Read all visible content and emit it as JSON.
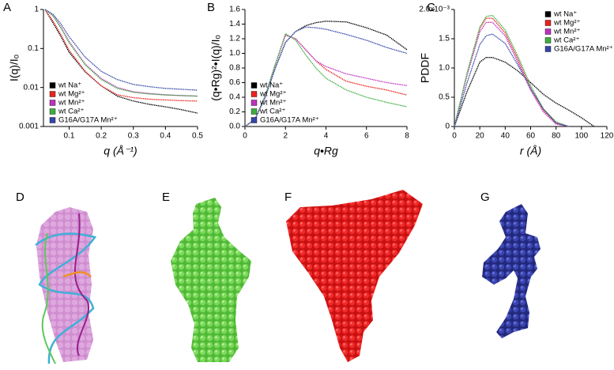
{
  "chart_data": [
    {
      "type": "line",
      "panel": "A",
      "xlabel": "q (Å⁻¹)",
      "ylabel": "I(q)/Iₒ",
      "yscale": "log",
      "legend": "lower left",
      "xlim": [
        0.02,
        0.5
      ],
      "xticks": [
        0.1,
        0.2,
        0.3,
        0.4,
        0.5
      ],
      "ylim": [
        0.001,
        1
      ],
      "yticks": [
        0.001,
        0.01,
        0.1,
        1
      ],
      "x": [
        0.025,
        0.05,
        0.075,
        0.1,
        0.15,
        0.2,
        0.25,
        0.3,
        0.35,
        0.4,
        0.45,
        0.5
      ],
      "series": [
        {
          "name": "wt Na⁺",
          "color": "#000000",
          "values": [
            1,
            0.45,
            0.2,
            0.08,
            0.025,
            0.011,
            0.006,
            0.0045,
            0.0037,
            0.0032,
            0.0027,
            0.0022
          ]
        },
        {
          "name": "wt Mg²⁺",
          "color": "#e8231f",
          "values": [
            1,
            0.5,
            0.22,
            0.09,
            0.026,
            0.011,
            0.0065,
            0.0055,
            0.005,
            0.0048,
            0.0046,
            0.0045
          ]
        },
        {
          "name": "wt Mn²⁺",
          "color": "#c030c0",
          "values": [
            1,
            0.7,
            0.35,
            0.15,
            0.04,
            0.017,
            0.01,
            0.0078,
            0.007,
            0.0065,
            0.0062,
            0.006
          ]
        },
        {
          "name": "wt Ca²⁺",
          "color": "#3fae3f",
          "values": [
            1,
            0.68,
            0.33,
            0.14,
            0.038,
            0.016,
            0.0095,
            0.0075,
            0.0068,
            0.0064,
            0.0062,
            0.006
          ]
        },
        {
          "name": "G16A/G17A Mn²⁺",
          "color": "#3446a8",
          "values": [
            1,
            0.75,
            0.42,
            0.2,
            0.06,
            0.026,
            0.016,
            0.012,
            0.0105,
            0.0095,
            0.009,
            0.0085
          ]
        }
      ]
    },
    {
      "type": "line",
      "panel": "B",
      "xlabel": "q•Rg",
      "ylabel": "(q•Rg)²•I(q)/Iₒ",
      "legend": "lower left",
      "xlim": [
        0,
        8
      ],
      "xticks": [
        0,
        2,
        4,
        6,
        8
      ],
      "ylim": [
        0,
        1.6
      ],
      "yticks": [
        {
          "value": 0,
          "label": "0.0"
        },
        0.2,
        0.4,
        0.6,
        0.8,
        {
          "value": 1,
          "label": "1.0"
        },
        1.2,
        1.4,
        1.6
      ],
      "x": [
        0,
        0.5,
        1,
        1.5,
        2,
        2.5,
        3,
        3.5,
        4,
        5,
        6,
        7,
        8
      ],
      "series": [
        {
          "name": "wt Na⁺",
          "color": "#000000",
          "values": [
            0,
            0.1,
            0.4,
            0.8,
            1.15,
            1.3,
            1.38,
            1.42,
            1.44,
            1.43,
            1.35,
            1.25,
            1.05
          ]
        },
        {
          "name": "wt Mg²⁺",
          "color": "#e8231f",
          "values": [
            0,
            0.1,
            0.42,
            0.85,
            1.25,
            1.2,
            1.05,
            0.9,
            0.78,
            0.62,
            0.55,
            0.5,
            0.43
          ]
        },
        {
          "name": "wt Mn²⁺",
          "color": "#c030c0",
          "values": [
            0,
            0.1,
            0.42,
            0.85,
            1.25,
            1.2,
            1.05,
            0.9,
            0.82,
            0.72,
            0.66,
            0.6,
            0.56
          ]
        },
        {
          "name": "wt Ca²⁺",
          "color": "#3fae3f",
          "values": [
            0,
            0.1,
            0.42,
            0.85,
            1.27,
            1.18,
            0.98,
            0.8,
            0.66,
            0.5,
            0.4,
            0.33,
            0.27
          ]
        },
        {
          "name": "G16A/G17A Mn²⁺",
          "color": "#3446a8",
          "values": [
            0,
            0.1,
            0.4,
            0.8,
            1.15,
            1.3,
            1.36,
            1.35,
            1.33,
            1.26,
            1.18,
            1.08,
            1.0
          ]
        }
      ]
    },
    {
      "type": "line",
      "panel": "C",
      "xlabel": "r (Å)",
      "ylabel": "PDDF",
      "legend": "upper right",
      "xlim": [
        0,
        120
      ],
      "xticks": [
        0,
        20,
        40,
        60,
        80,
        100,
        120
      ],
      "ylim": [
        0,
        2
      ],
      "yticks": [
        0,
        0.5,
        {
          "value": 1,
          "label": "1.0"
        },
        1.5,
        {
          "value": 2,
          "label": "2.0x10⁻³"
        }
      ],
      "x": [
        0,
        10,
        20,
        25,
        30,
        40,
        50,
        60,
        70,
        80,
        90,
        100,
        110
      ],
      "series": [
        {
          "name": "wt Na⁺",
          "color": "#000000",
          "values": [
            0,
            0.6,
            1.1,
            1.18,
            1.18,
            1.1,
            0.95,
            0.75,
            0.55,
            0.4,
            0.28,
            0.15,
            0
          ]
        },
        {
          "name": "wt Mg²⁺",
          "color": "#e8231f",
          "values": [
            0,
            0.9,
            1.68,
            1.85,
            1.85,
            1.6,
            1.15,
            0.65,
            0.28,
            0.06,
            0,
            null,
            null
          ]
        },
        {
          "name": "wt Mn²⁺",
          "color": "#c030c0",
          "values": [
            0,
            0.88,
            1.62,
            1.78,
            1.78,
            1.55,
            1.1,
            0.62,
            0.25,
            0.04,
            0,
            null,
            null
          ]
        },
        {
          "name": "wt Ca²⁺",
          "color": "#3fae3f",
          "values": [
            0,
            0.92,
            1.7,
            1.88,
            1.9,
            1.65,
            1.2,
            0.7,
            0.3,
            0.08,
            0,
            null,
            null
          ]
        },
        {
          "name": "G16A/G17A Mn²⁺",
          "color": "#3446a8",
          "values": [
            0,
            0.75,
            1.4,
            1.55,
            1.58,
            1.42,
            1.05,
            0.65,
            0.3,
            0.06,
            0,
            null,
            null
          ]
        }
      ]
    }
  ],
  "image_panels": [
    "D",
    "E",
    "F",
    "G"
  ]
}
